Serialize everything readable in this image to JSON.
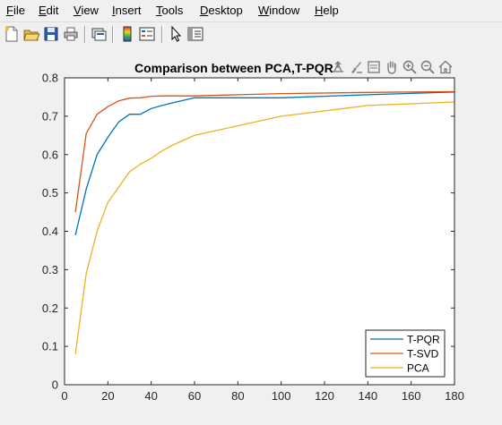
{
  "menu": {
    "file": "File",
    "edit": "Edit",
    "view": "View",
    "insert": "Insert",
    "tools": "Tools",
    "desktop": "Desktop",
    "window": "Window",
    "help": "Help"
  },
  "toolbar": {
    "icons": [
      "new-file-icon",
      "open-folder-icon",
      "save-icon",
      "print-icon",
      "link-figure-icon",
      "colorbar-icon",
      "legend-icon",
      "pointer-icon",
      "property-editor-icon"
    ]
  },
  "axes_toolbar": {
    "icons": [
      "export-icon",
      "brush-icon",
      "data-tip-icon",
      "pan-icon",
      "zoom-in-icon",
      "zoom-out-icon",
      "home-icon"
    ]
  },
  "chart_data": {
    "type": "line",
    "title": "Comparison between PCA,T-PQR",
    "xlabel": "",
    "ylabel": "",
    "xlim": [
      0,
      180
    ],
    "ylim": [
      0,
      0.8
    ],
    "xticks": [
      0,
      20,
      40,
      60,
      80,
      100,
      120,
      140,
      160,
      180
    ],
    "yticks": [
      0,
      0.1,
      0.2,
      0.3,
      0.4,
      0.5,
      0.6,
      0.7,
      0.8
    ],
    "grid": false,
    "legend_position": "bottom-right",
    "series": [
      {
        "name": "T-PQR",
        "color": "#0072bd",
        "x": [
          5,
          10,
          15,
          20,
          25,
          30,
          35,
          40,
          45,
          50,
          60,
          80,
          100,
          140,
          180
        ],
        "y": [
          0.39,
          0.51,
          0.6,
          0.645,
          0.685,
          0.705,
          0.705,
          0.72,
          0.728,
          0.735,
          0.748,
          0.748,
          0.748,
          0.756,
          0.763
        ]
      },
      {
        "name": "T-SVD",
        "color": "#d95319",
        "x": [
          5,
          10,
          15,
          20,
          25,
          30,
          35,
          40,
          45,
          50,
          60,
          80,
          100,
          140,
          180
        ],
        "y": [
          0.45,
          0.655,
          0.705,
          0.725,
          0.74,
          0.747,
          0.748,
          0.752,
          0.753,
          0.753,
          0.753,
          0.756,
          0.759,
          0.762,
          0.764
        ]
      },
      {
        "name": "PCA",
        "color": "#edb120",
        "x": [
          5,
          10,
          15,
          20,
          25,
          30,
          35,
          40,
          45,
          50,
          60,
          80,
          100,
          140,
          180
        ],
        "y": [
          0.08,
          0.29,
          0.4,
          0.475,
          0.515,
          0.555,
          0.575,
          0.59,
          0.61,
          0.625,
          0.65,
          0.675,
          0.7,
          0.728,
          0.737
        ]
      }
    ]
  }
}
